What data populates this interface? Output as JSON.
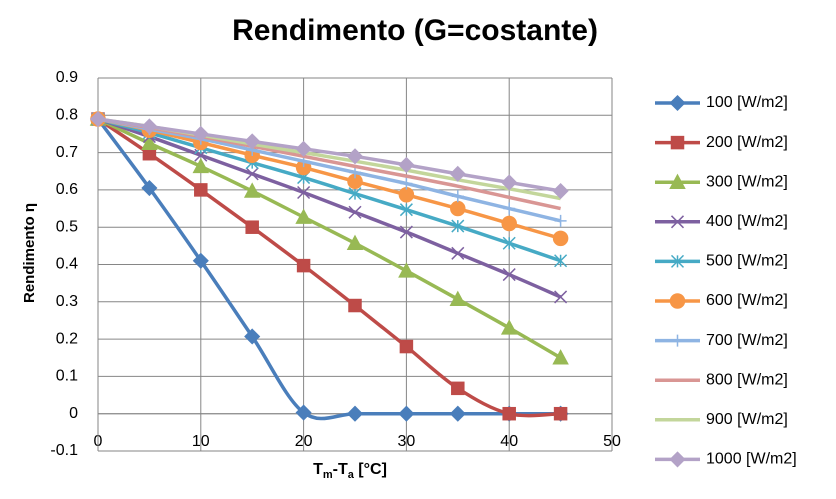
{
  "chart_data": {
    "type": "line",
    "title": "Rendimento (G=costante)",
    "x_label": [
      "T",
      "m",
      "-T",
      "a",
      " [°C]"
    ],
    "y_label": "Rendimento η",
    "x": [
      0,
      5,
      10,
      15,
      20,
      25,
      30,
      35,
      40,
      45
    ],
    "xlim": [
      0,
      50
    ],
    "xticks": [
      0,
      10,
      20,
      30,
      40,
      50
    ],
    "ylim": [
      -0.1,
      0.9
    ],
    "yticks": [
      -0.1,
      0,
      0.1,
      0.2,
      0.3,
      0.4,
      0.5,
      0.6,
      0.7,
      0.8,
      0.9
    ],
    "grid": true,
    "smooth": true,
    "legend": "right",
    "series": [
      {
        "name": "100 [W/m2]",
        "color": "#4a7ebb",
        "marker": "diamond",
        "values": [
          0.79,
          0.605,
          0.41,
          0.207,
          0.003,
          0,
          0,
          0,
          0,
          0
        ]
      },
      {
        "name": "200 [W/m2]",
        "color": "#be4b48",
        "marker": "square",
        "values": [
          0.79,
          0.697,
          0.6,
          0.5,
          0.397,
          0.29,
          0.18,
          0.068,
          0,
          0
        ]
      },
      {
        "name": "300 [W/m2]",
        "color": "#98b954",
        "marker": "triangle",
        "values": [
          0.79,
          0.725,
          0.663,
          0.597,
          0.527,
          0.457,
          0.383,
          0.307,
          0.23,
          0.15
        ]
      },
      {
        "name": "400 [W/m2]",
        "color": "#7d60a0",
        "marker": "x",
        "values": [
          0.79,
          0.743,
          0.693,
          0.643,
          0.593,
          0.54,
          0.487,
          0.43,
          0.373,
          0.313
        ]
      },
      {
        "name": "500 [W/m2]",
        "color": "#46aac5",
        "marker": "star",
        "values": [
          0.79,
          0.753,
          0.713,
          0.673,
          0.633,
          0.59,
          0.547,
          0.503,
          0.457,
          0.41
        ]
      },
      {
        "name": "600 [W/m2]",
        "color": "#f79646",
        "marker": "circle",
        "values": [
          0.79,
          0.76,
          0.727,
          0.693,
          0.66,
          0.623,
          0.587,
          0.55,
          0.51,
          0.47
        ]
      },
      {
        "name": "700 [W/m2]",
        "color": "#8eb4e3",
        "marker": "plus",
        "values": [
          0.79,
          0.763,
          0.737,
          0.707,
          0.677,
          0.647,
          0.617,
          0.583,
          0.55,
          0.517
        ]
      },
      {
        "name": "800 [W/m2]",
        "color": "#d99694",
        "marker": "none",
        "values": [
          0.79,
          0.767,
          0.743,
          0.717,
          0.69,
          0.663,
          0.637,
          0.61,
          0.58,
          0.55
        ]
      },
      {
        "name": "900 [W/m2]",
        "color": "#c3d69b",
        "marker": "none",
        "values": [
          0.79,
          0.77,
          0.747,
          0.723,
          0.7,
          0.677,
          0.653,
          0.627,
          0.603,
          0.577
        ]
      },
      {
        "name": "1000 [W/m2]",
        "color": "#b3a2c7",
        "marker": "diamond",
        "values": [
          0.79,
          0.77,
          0.75,
          0.73,
          0.71,
          0.69,
          0.667,
          0.643,
          0.62,
          0.597
        ]
      }
    ]
  }
}
